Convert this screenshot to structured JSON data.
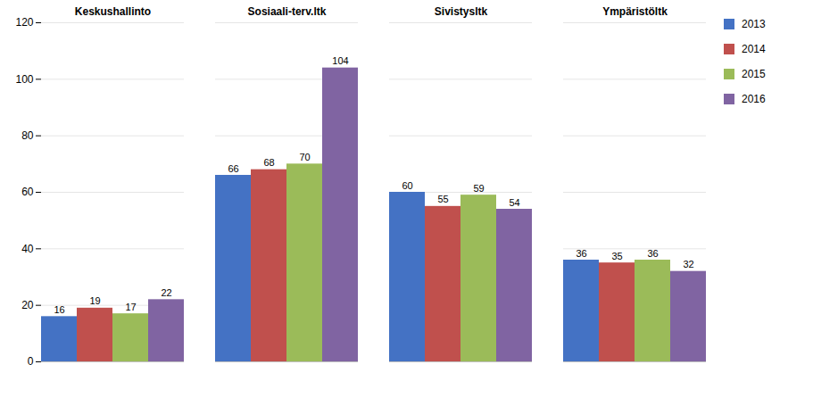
{
  "chart_data": {
    "type": "bar",
    "categories": [
      "Keskushallinto",
      "Sosiaali-terv.ltk",
      "Sivistysltk",
      "Ympäristöltk"
    ],
    "series": [
      {
        "name": "2013",
        "color": "#4472C4",
        "values": [
          16,
          66,
          60,
          36
        ]
      },
      {
        "name": "2014",
        "color": "#C0504D",
        "values": [
          19,
          68,
          55,
          35
        ]
      },
      {
        "name": "2015",
        "color": "#9BBB59",
        "values": [
          17,
          70,
          59,
          36
        ]
      },
      {
        "name": "2016",
        "color": "#8064A2",
        "values": [
          22,
          104,
          54,
          32
        ]
      }
    ],
    "ylim": [
      0,
      120
    ],
    "yticks": [
      0,
      20,
      40,
      60,
      80,
      100,
      120
    ],
    "grid": true,
    "data_labels": true,
    "legend": "right"
  }
}
